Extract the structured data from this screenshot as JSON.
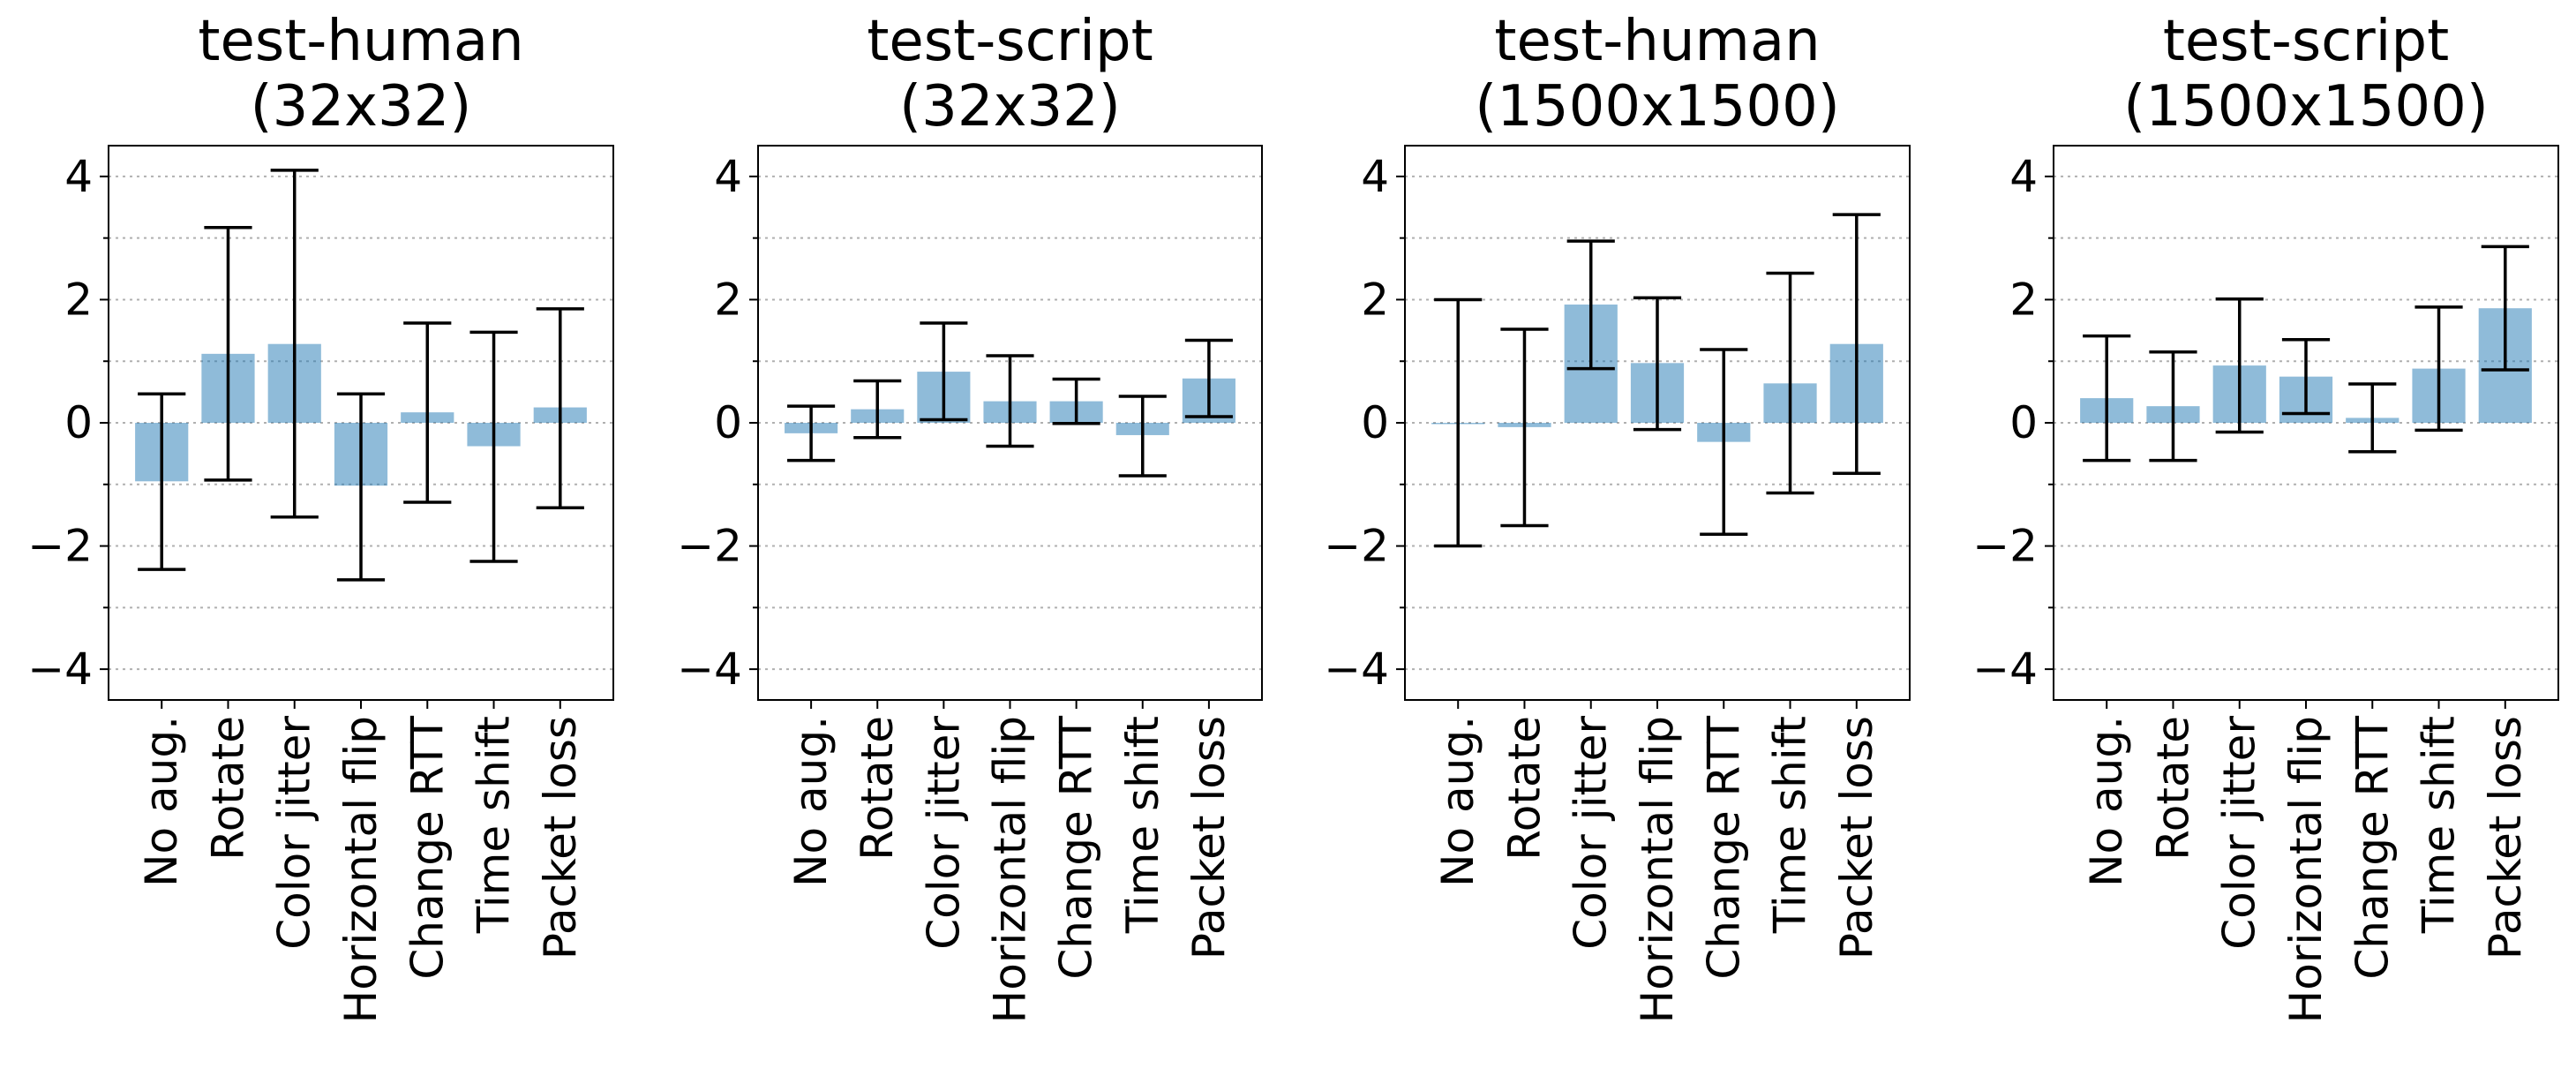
{
  "chart_data": [
    {
      "type": "bar",
      "title_lines": [
        "test-human",
        "(32x32)"
      ],
      "categories": [
        "No aug.",
        "Rotate",
        "Color jitter",
        "Horizontal flip",
        "Change RTT",
        "Time shift",
        "Packet loss"
      ],
      "values": [
        -0.95,
        1.12,
        1.28,
        -1.02,
        0.17,
        -0.38,
        0.25
      ],
      "error_low": [
        -2.38,
        -0.93,
        -1.53,
        -2.55,
        -1.29,
        -2.25,
        -1.38
      ],
      "error_high": [
        0.47,
        3.17,
        4.1,
        0.47,
        1.62,
        1.47,
        1.85
      ],
      "ylim": [
        -4.5,
        4.5
      ],
      "yticks": [
        "4",
        "2",
        "0",
        "−2",
        "−4"
      ],
      "ytick_values": [
        4,
        2,
        0,
        -2,
        -4
      ],
      "grid_values": [
        4,
        3,
        2,
        1,
        0,
        -1,
        -2,
        -3,
        -4
      ],
      "grid": true
    },
    {
      "type": "bar",
      "title_lines": [
        "test-script",
        "(32x32)"
      ],
      "categories": [
        "No aug.",
        "Rotate",
        "Color jitter",
        "Horizontal flip",
        "Change RTT",
        "Time shift",
        "Packet loss"
      ],
      "values": [
        -0.17,
        0.22,
        0.83,
        0.35,
        0.35,
        -0.2,
        0.72
      ],
      "error_low": [
        -0.61,
        -0.24,
        0.05,
        -0.38,
        -0.01,
        -0.86,
        0.1
      ],
      "error_high": [
        0.27,
        0.68,
        1.62,
        1.09,
        0.71,
        0.43,
        1.34
      ],
      "ylim": [
        -4.5,
        4.5
      ],
      "yticks": [
        "4",
        "2",
        "0",
        "−2",
        "−4"
      ],
      "ytick_values": [
        4,
        2,
        0,
        -2,
        -4
      ],
      "grid_values": [
        4,
        3,
        2,
        1,
        0,
        -1,
        -2,
        -3,
        -4
      ],
      "grid": true
    },
    {
      "type": "bar",
      "title_lines": [
        "test-human",
        "(1500x1500)"
      ],
      "categories": [
        "No aug.",
        "Rotate",
        "Color jitter",
        "Horizontal flip",
        "Change RTT",
        "Time shift",
        "Packet loss"
      ],
      "values": [
        0.0,
        -0.07,
        1.92,
        0.97,
        -0.31,
        0.64,
        1.28
      ],
      "error_low": [
        -2.0,
        -1.67,
        0.88,
        -0.11,
        -1.81,
        -1.14,
        -0.82
      ],
      "error_high": [
        2.0,
        1.52,
        2.95,
        2.03,
        1.19,
        2.43,
        3.38
      ],
      "ylim": [
        -4.5,
        4.5
      ],
      "yticks": [
        "4",
        "2",
        "0",
        "−2",
        "−4"
      ],
      "ytick_values": [
        4,
        2,
        0,
        -2,
        -4
      ],
      "grid_values": [
        4,
        3,
        2,
        1,
        0,
        -1,
        -2,
        -3,
        -4
      ],
      "grid": true
    },
    {
      "type": "bar",
      "title_lines": [
        "test-script",
        "(1500x1500)"
      ],
      "categories": [
        "No aug.",
        "Rotate",
        "Color jitter",
        "Horizontal flip",
        "Change RTT",
        "Time shift",
        "Packet loss"
      ],
      "values": [
        0.4,
        0.27,
        0.93,
        0.75,
        0.08,
        0.88,
        1.86
      ],
      "error_low": [
        -0.61,
        -0.61,
        -0.15,
        0.15,
        -0.47,
        -0.12,
        0.86
      ],
      "error_high": [
        1.41,
        1.15,
        2.01,
        1.35,
        0.63,
        1.88,
        2.86
      ],
      "ylim": [
        -4.5,
        4.5
      ],
      "yticks": [
        "4",
        "2",
        "0",
        "−2",
        "−4"
      ],
      "ytick_values": [
        4,
        2,
        0,
        -2,
        -4
      ],
      "grid_values": [
        4,
        3,
        2,
        1,
        0,
        -1,
        -2,
        -3,
        -4
      ],
      "grid": true
    }
  ]
}
